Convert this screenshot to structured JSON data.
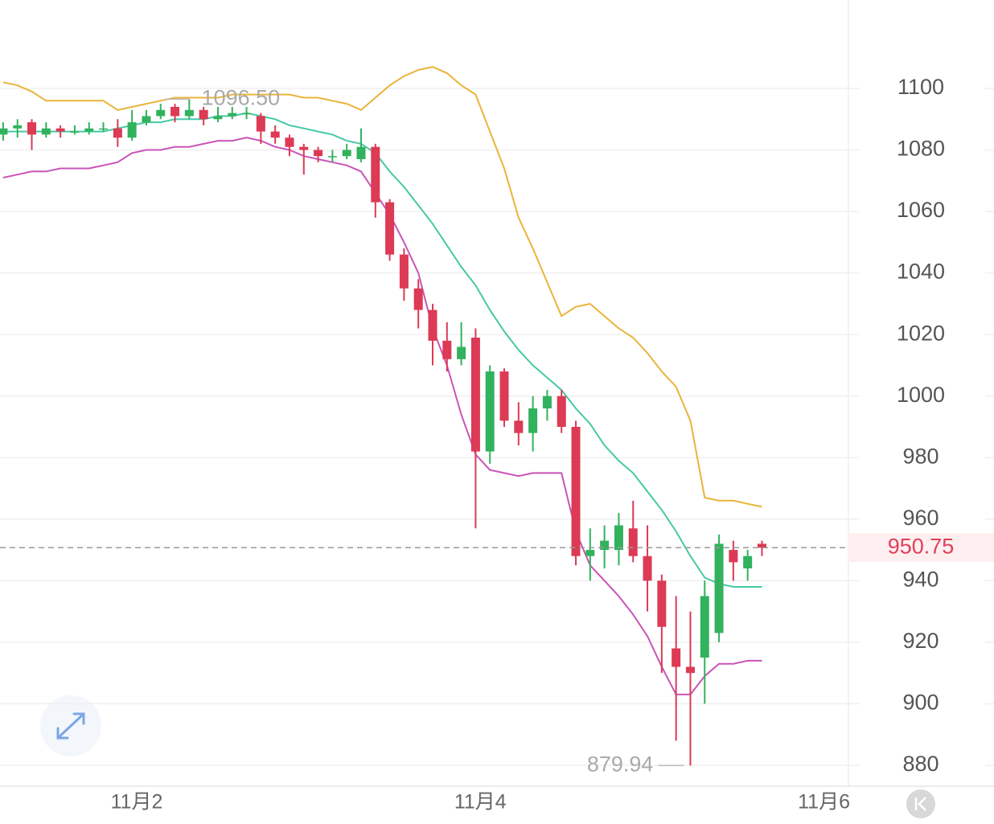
{
  "chart_data": {
    "type": "candlestick",
    "open": [
      1085,
      1087,
      1089,
      1085,
      1087,
      1086,
      1086,
      1087,
      1087,
      1084,
      1089,
      1091,
      1094,
      1091,
      1093,
      1090,
      1091,
      1092,
      1091,
      1086,
      1084,
      1081,
      1080,
      1078,
      1078,
      1077,
      1081,
      1063,
      1046,
      1035,
      1028,
      1018,
      1012,
      1019,
      982,
      1008,
      992,
      988,
      996,
      1000,
      990,
      948,
      950,
      950,
      957,
      948,
      940,
      918,
      912,
      915,
      923,
      950,
      944,
      952
    ],
    "high": [
      1089,
      1090,
      1090,
      1089,
      1088,
      1088,
      1089,
      1089,
      1090,
      1093,
      1093,
      1095,
      1095,
      1096.5,
      1094,
      1094,
      1094,
      1094,
      1092,
      1088,
      1085,
      1082,
      1081,
      1080,
      1082,
      1087,
      1082,
      1064,
      1048,
      1038,
      1030,
      1024,
      1024,
      1022,
      1010,
      1009,
      998,
      1000,
      1002,
      1002,
      992,
      957,
      958,
      962,
      966,
      958,
      942,
      935,
      930,
      940,
      955,
      953,
      950,
      953
    ],
    "low": [
      1083,
      1084,
      1080,
      1084,
      1084,
      1085,
      1085,
      1086,
      1081,
      1083,
      1088,
      1090,
      1089,
      1090,
      1088,
      1089,
      1090,
      1090,
      1082,
      1082,
      1078,
      1072,
      1076,
      1076,
      1077,
      1076,
      1058,
      1044,
      1031,
      1022,
      1010,
      1008,
      1010,
      957,
      978,
      990,
      984,
      982,
      992,
      988,
      945,
      940,
      944,
      945,
      946,
      930,
      910,
      888,
      879.94,
      900,
      920,
      940,
      940,
      948
    ],
    "close": [
      1087,
      1088,
      1085,
      1087,
      1086,
      1086,
      1087,
      1087,
      1084,
      1089,
      1091,
      1093,
      1091,
      1093,
      1090,
      1091,
      1092,
      1092,
      1086,
      1084,
      1081,
      1080,
      1078,
      1078,
      1080,
      1081,
      1063,
      1046,
      1035,
      1028,
      1018,
      1012,
      1016,
      982,
      1008,
      992,
      988,
      996,
      1000,
      990,
      948,
      950,
      953,
      958,
      948,
      940,
      925,
      912,
      910,
      935,
      952,
      946,
      948,
      950.75
    ],
    "up_color": "#32b25e",
    "down_color": "#dc3a55",
    "bands": [
      {
        "color": "#e9b43a",
        "values": [
          1102,
          1101,
          1099,
          1096,
          1096,
          1096,
          1096,
          1096,
          1093,
          1094,
          1095,
          1096,
          1097,
          1097,
          1097,
          1097,
          1098,
          1098,
          1098,
          1098,
          1098,
          1097,
          1097,
          1096,
          1095,
          1093,
          1097,
          1101,
          1104,
          1106,
          1107,
          1105,
          1101,
          1098,
          1086,
          1074,
          1058,
          1048,
          1037,
          1026,
          1029,
          1030,
          1026,
          1022,
          1019,
          1014,
          1008,
          1003,
          992,
          967,
          966,
          966,
          965,
          964
        ]
      },
      {
        "color": "#45c9a5",
        "values": [
          1086,
          1086,
          1086,
          1086,
          1086,
          1086,
          1086,
          1086,
          1087,
          1088,
          1089,
          1089,
          1090,
          1090,
          1090,
          1091,
          1091,
          1092,
          1091,
          1090,
          1088,
          1087,
          1086,
          1085,
          1083,
          1082,
          1079,
          1073,
          1068,
          1062,
          1056,
          1049,
          1042,
          1036,
          1028,
          1021,
          1015,
          1010,
          1006,
          1002,
          996,
          991,
          984,
          979,
          975,
          969,
          963,
          956,
          948,
          941,
          939,
          938,
          938,
          938
        ]
      },
      {
        "color": "#c954b8",
        "values": [
          1071,
          1072,
          1073,
          1073,
          1074,
          1074,
          1074,
          1075,
          1076,
          1079,
          1080,
          1080,
          1081,
          1081,
          1082,
          1083,
          1083,
          1084,
          1083,
          1081,
          1080,
          1078,
          1077,
          1076,
          1075,
          1073,
          1066,
          1059,
          1050,
          1040,
          1022,
          1010,
          994,
          981,
          976,
          975,
          974,
          975,
          975,
          975,
          956,
          945,
          940,
          935,
          929,
          922,
          912,
          903,
          903,
          909,
          913,
          913,
          914,
          914
        ]
      }
    ],
    "xlim": [
      -0.22,
      59.04
    ],
    "xticks": [
      {
        "value": 9.33,
        "label": "11月2"
      },
      {
        "value": 33.33,
        "label": "11月4"
      },
      {
        "value": 57.33,
        "label": "11月6"
      }
    ],
    "ylim": [
      873.2,
      1128.74
    ],
    "yticks": [
      880,
      900,
      920,
      940,
      960,
      980,
      1000,
      1020,
      1040,
      1060,
      1080,
      1100
    ],
    "grid": true,
    "max_label": {
      "value": 1096.5,
      "label": "1096.50"
    },
    "min_label": {
      "value": 879.94,
      "label": "879.94"
    },
    "last_price": {
      "value": 950.75,
      "label": "950.75"
    }
  }
}
